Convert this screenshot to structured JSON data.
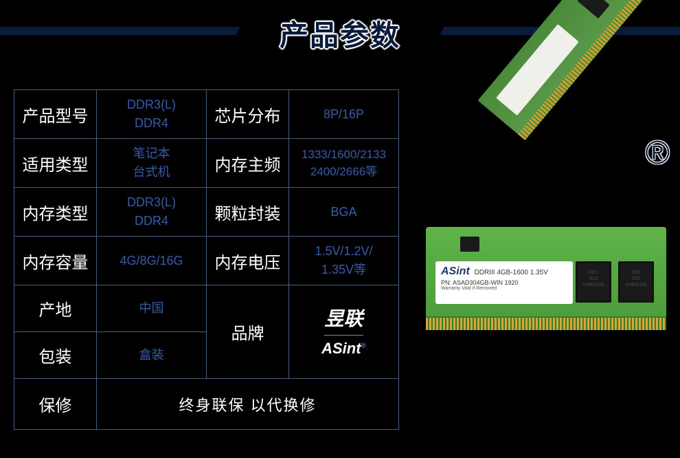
{
  "header": {
    "title": "产品参数",
    "title_color": "#0a1a3a",
    "bar_color": "#0a1a3a"
  },
  "table": {
    "border_color": "#4a5a7a",
    "label_color": "#ffffff",
    "value_color": "#3a5ba8",
    "rows": [
      {
        "label1": "产品型号",
        "value1": "DDR3(L)\nDDR4",
        "label2": "芯片分布",
        "value2": "8P/16P"
      },
      {
        "label1": "适用类型",
        "value1": "笔记本\n台式机",
        "label2": "内存主频",
        "value2": "1333/1600/2133\n2400/2666等"
      },
      {
        "label1": "内存类型",
        "value1": "DDR3(L)\nDDR4",
        "label2": "颗粒封装",
        "value2": "BGA"
      },
      {
        "label1": "内存容量",
        "value1": "4G/8G/16G",
        "label2": "内存电压",
        "value2": "1.5V/1.2V/\n1.35V等"
      }
    ],
    "origin_label": "产地",
    "origin_value": "中国",
    "package_label": "包装",
    "package_value": "盒装",
    "brand_label": "品牌",
    "brand_cn": "昱联",
    "brand_en": "ASint",
    "brand_en_sup": "®",
    "warranty_label": "保修",
    "warranty_value": "终身联保 以代换修"
  },
  "ram": {
    "registered_symbol": "®",
    "sodimm_label": {
      "brand": "ASint",
      "model": "DDRIII 4GB-1600 1.35V",
      "pn": "PN: ASAD304GB-WIN 1920",
      "warn": "Warranty Void if Removed"
    },
    "colors": {
      "pcb_green": "#5fb348",
      "pcb_green_dark": "#4a9a3a",
      "gold": "#d4a838",
      "chip": "#1a1a1a"
    }
  },
  "background_color": "#000000"
}
